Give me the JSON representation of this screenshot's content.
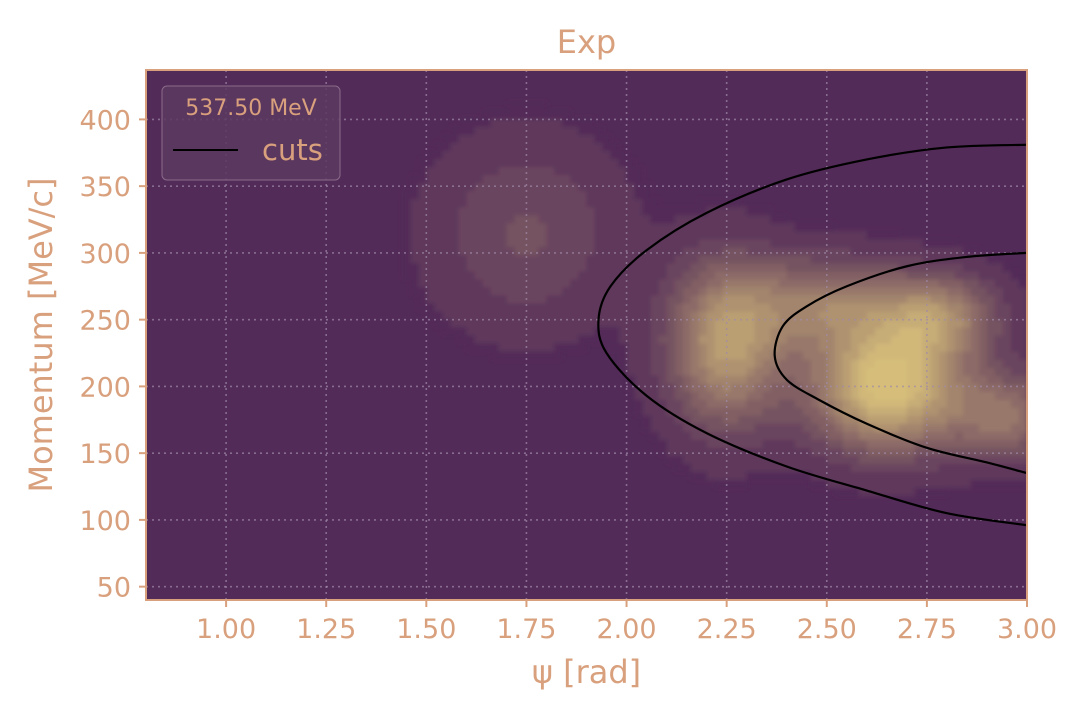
{
  "chart_data": {
    "type": "heatmap",
    "title": "Exp",
    "xlabel": "ψ [rad]",
    "ylabel": "Momentum [MeV/c]",
    "xlim": [
      0.8,
      3.0
    ],
    "ylim": [
      40,
      437
    ],
    "xticks": [
      1.0,
      1.25,
      1.5,
      1.75,
      2.0,
      2.25,
      2.5,
      2.75,
      3.0
    ],
    "xtick_labels": [
      "1.00",
      "1.25",
      "1.50",
      "1.75",
      "2.00",
      "2.25",
      "2.50",
      "2.75",
      "3.00"
    ],
    "yticks": [
      50,
      100,
      150,
      200,
      250,
      300,
      350,
      400
    ],
    "ytick_labels": [
      "50",
      "100",
      "150",
      "200",
      "250",
      "300",
      "350",
      "400"
    ],
    "grid": true,
    "legend": {
      "placement": "top-left",
      "title": "537.50 MeV",
      "entries": [
        {
          "label": "cuts",
          "color": "#000000"
        }
      ]
    },
    "density_peaks": [
      {
        "x": 2.65,
        "y": 200,
        "amplitude": 1.0,
        "sx": 0.13,
        "sy": 32
      },
      {
        "x": 2.78,
        "y": 252,
        "amplitude": 0.55,
        "sx": 0.1,
        "sy": 22
      },
      {
        "x": 2.25,
        "y": 232,
        "amplitude": 0.72,
        "sx": 0.1,
        "sy": 42
      },
      {
        "x": 2.5,
        "y": 262,
        "amplitude": 0.5,
        "sx": 0.14,
        "sy": 24
      },
      {
        "x": 2.95,
        "y": 178,
        "amplitude": 0.45,
        "sx": 0.1,
        "sy": 22
      },
      {
        "x": 1.75,
        "y": 315,
        "amplitude": 0.22,
        "sx": 0.16,
        "sy": 48
      }
    ],
    "cut_curves": [
      {
        "name": "outer",
        "points": [
          [
            3.0,
            381
          ],
          [
            2.8,
            379
          ],
          [
            2.6,
            370
          ],
          [
            2.4,
            355
          ],
          [
            2.2,
            330
          ],
          [
            2.05,
            302
          ],
          [
            1.96,
            275
          ],
          [
            1.93,
            250
          ],
          [
            1.95,
            225
          ],
          [
            2.05,
            193
          ],
          [
            2.2,
            165
          ],
          [
            2.4,
            140
          ],
          [
            2.6,
            122
          ],
          [
            2.8,
            105
          ],
          [
            3.0,
            96
          ]
        ]
      },
      {
        "name": "inner",
        "points": [
          [
            3.0,
            300
          ],
          [
            2.85,
            297
          ],
          [
            2.7,
            290
          ],
          [
            2.55,
            275
          ],
          [
            2.45,
            260
          ],
          [
            2.39,
            245
          ],
          [
            2.37,
            223
          ],
          [
            2.4,
            205
          ],
          [
            2.48,
            190
          ],
          [
            2.6,
            172
          ],
          [
            2.75,
            154
          ],
          [
            2.9,
            143
          ],
          [
            3.0,
            135
          ]
        ]
      }
    ],
    "colors": {
      "text": "#d9a07d",
      "background": "#532b58",
      "frame": "#d9a07d",
      "grid": "#a08aa8",
      "density_low": "#532b58",
      "density_high": "#d6be7a"
    }
  }
}
